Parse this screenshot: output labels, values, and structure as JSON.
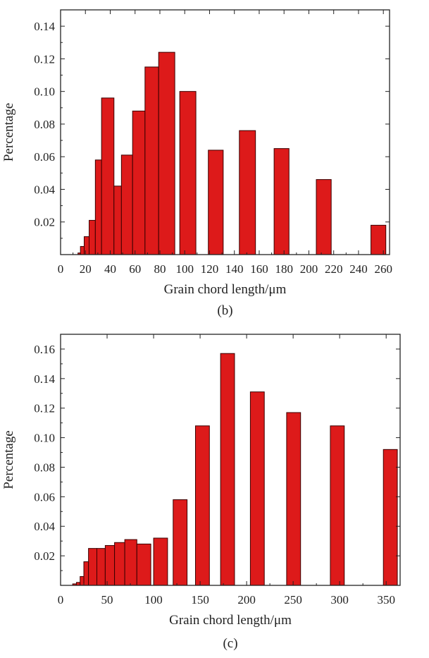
{
  "chart_data": [
    {
      "type": "bar",
      "caption": "(b)",
      "xlabel": "Grain chord length/μm",
      "ylabel": "Percentage",
      "xlim": [
        0,
        265
      ],
      "ylim": [
        0,
        0.15
      ],
      "xticks": [
        0,
        20,
        40,
        60,
        80,
        100,
        120,
        140,
        160,
        180,
        200,
        220,
        240,
        260
      ],
      "xtick_labels": [
        "0",
        "20",
        "40",
        "60",
        "80",
        "100",
        "120",
        "140",
        "160",
        "180",
        "200",
        "220",
        "240",
        "260"
      ],
      "yticks": [
        0.02,
        0.04,
        0.06,
        0.08,
        0.1,
        0.12,
        0.14
      ],
      "ytick_labels": [
        "0.02",
        "0.04",
        "0.06",
        "0.08",
        "0.10",
        "0.12",
        "0.14"
      ],
      "bar_color": "#dd1a1a",
      "bars": [
        {
          "x0": 14,
          "x1": 16,
          "value": 0.001
        },
        {
          "x0": 16,
          "x1": 19,
          "value": 0.005
        },
        {
          "x0": 19,
          "x1": 23,
          "value": 0.011
        },
        {
          "x0": 23,
          "x1": 28,
          "value": 0.021
        },
        {
          "x0": 28,
          "x1": 33,
          "value": 0.058
        },
        {
          "x0": 33,
          "x1": 43,
          "value": 0.096
        },
        {
          "x0": 43,
          "x1": 49,
          "value": 0.042
        },
        {
          "x0": 49,
          "x1": 58,
          "value": 0.061
        },
        {
          "x0": 58,
          "x1": 68,
          "value": 0.088
        },
        {
          "x0": 68,
          "x1": 79,
          "value": 0.115
        },
        {
          "x0": 79,
          "x1": 92,
          "value": 0.124
        },
        {
          "x0": 96,
          "x1": 109,
          "value": 0.1
        },
        {
          "x0": 119,
          "x1": 131,
          "value": 0.064
        },
        {
          "x0": 144,
          "x1": 157,
          "value": 0.076
        },
        {
          "x0": 172,
          "x1": 184,
          "value": 0.065
        },
        {
          "x0": 206,
          "x1": 218,
          "value": 0.046
        },
        {
          "x0": 250,
          "x1": 262,
          "value": 0.018
        }
      ]
    },
    {
      "type": "bar",
      "caption": "(c)",
      "xlabel": "Grain chord length/μm",
      "ylabel": "Percentage",
      "xlim": [
        0,
        365
      ],
      "ylim": [
        0,
        0.17
      ],
      "xticks": [
        0,
        50,
        100,
        150,
        200,
        250,
        300,
        350
      ],
      "xtick_labels": [
        "0",
        "50",
        "100",
        "150",
        "200",
        "250",
        "300",
        "350"
      ],
      "yticks": [
        0.02,
        0.04,
        0.06,
        0.08,
        0.1,
        0.12,
        0.14,
        0.16
      ],
      "ytick_labels": [
        "0.02",
        "0.04",
        "0.06",
        "0.08",
        "0.10",
        "0.12",
        "0.14",
        "0.16"
      ],
      "bar_color": "#dd1a1a",
      "bars": [
        {
          "x0": 13,
          "x1": 17,
          "value": 0.001
        },
        {
          "x0": 17,
          "x1": 21,
          "value": 0.002
        },
        {
          "x0": 21,
          "x1": 25,
          "value": 0.006
        },
        {
          "x0": 25,
          "x1": 30,
          "value": 0.016
        },
        {
          "x0": 30,
          "x1": 39,
          "value": 0.025
        },
        {
          "x0": 39,
          "x1": 48,
          "value": 0.025
        },
        {
          "x0": 48,
          "x1": 58,
          "value": 0.027
        },
        {
          "x0": 58,
          "x1": 69,
          "value": 0.029
        },
        {
          "x0": 69,
          "x1": 82,
          "value": 0.031
        },
        {
          "x0": 82,
          "x1": 97,
          "value": 0.028
        },
        {
          "x0": 100,
          "x1": 115,
          "value": 0.032
        },
        {
          "x0": 121,
          "x1": 136,
          "value": 0.058
        },
        {
          "x0": 145,
          "x1": 160,
          "value": 0.108
        },
        {
          "x0": 172,
          "x1": 187,
          "value": 0.157
        },
        {
          "x0": 204,
          "x1": 219,
          "value": 0.131
        },
        {
          "x0": 243,
          "x1": 258,
          "value": 0.117
        },
        {
          "x0": 290,
          "x1": 305,
          "value": 0.108
        },
        {
          "x0": 347,
          "x1": 362,
          "value": 0.092
        }
      ]
    }
  ]
}
